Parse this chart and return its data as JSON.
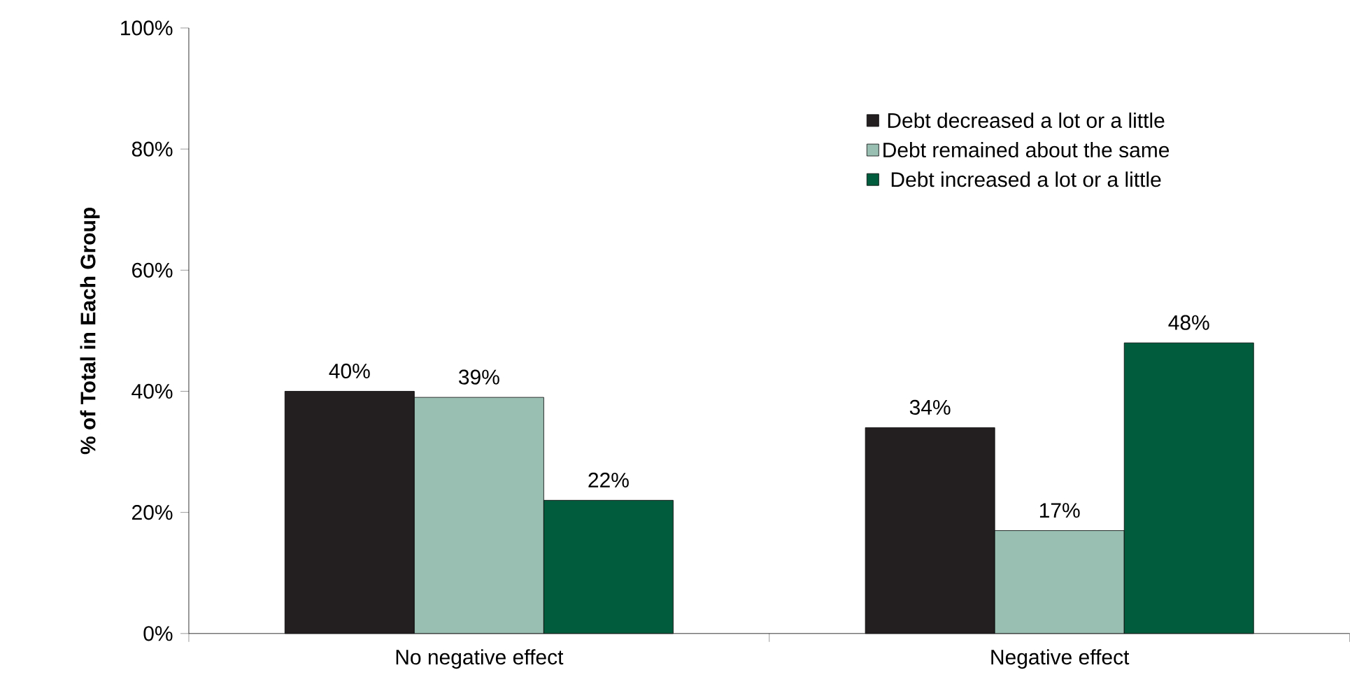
{
  "chart_data": {
    "type": "bar",
    "ylabel": "% of Total in Each Group",
    "categories": [
      "No negative effect",
      "Negative effect"
    ],
    "series": [
      {
        "name": "Debt decreased a lot or a little",
        "color": "#231f20",
        "values": [
          40,
          34
        ],
        "value_labels": [
          "40%",
          "34%"
        ]
      },
      {
        "name": "Debt remained about the same",
        "color": "#99bfb3",
        "values": [
          39,
          17
        ],
        "value_labels": [
          "39%",
          "17%"
        ]
      },
      {
        "name": "Debt increased a lot or a little",
        "color": "#005c3c",
        "values": [
          22,
          48
        ],
        "value_labels": [
          "22%",
          "48%"
        ]
      }
    ],
    "ylim": [
      0,
      100
    ],
    "yticks": [
      {
        "value": 0,
        "label": "0%"
      },
      {
        "value": 20,
        "label": "20%"
      },
      {
        "value": 40,
        "label": "40%"
      },
      {
        "value": 60,
        "label": "60%"
      },
      {
        "value": 80,
        "label": "80%"
      },
      {
        "value": 100,
        "label": "100%"
      }
    ],
    "legend": "top right",
    "grid": false
  }
}
